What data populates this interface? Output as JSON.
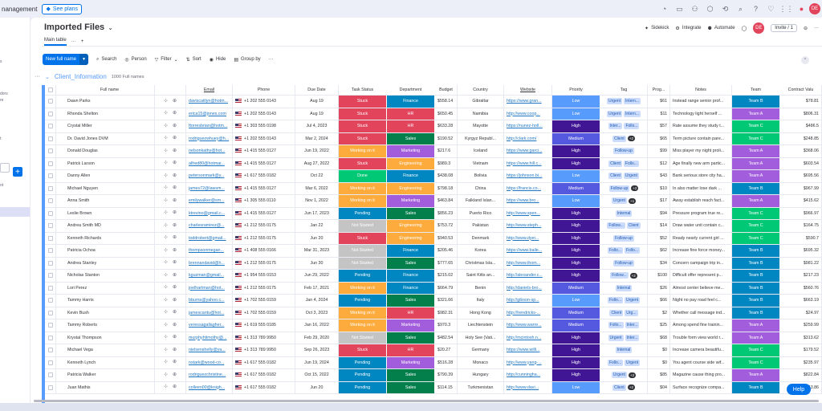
{
  "topbar": {
    "product_fragment": "nanagement",
    "plans_label": "See plans",
    "avatar": "DE"
  },
  "board": {
    "title": "Imported Files",
    "tab": "Main table",
    "tab_more": "···",
    "tab_add": "+"
  },
  "header_actions": {
    "sidekick": "Sidekick",
    "integrate": "Integrate",
    "automate": "Automate",
    "avatar": "DE",
    "invite": "Invite / 1"
  },
  "toolbar": {
    "new_item": "New full name",
    "search": "Search",
    "person": "Person",
    "filter": "Filter",
    "sort": "Sort",
    "hide": "Hide",
    "group_by": "Group by"
  },
  "group": {
    "name": "Client_Information",
    "count": "1000 Full names"
  },
  "columns": [
    "",
    "Full name",
    "",
    "Email",
    "Phone",
    "Due Date",
    "Task Status",
    "Department",
    "Budget",
    "Country",
    "Website",
    "Priority",
    "Tag",
    "Prog...",
    "Notes",
    "Team",
    "Contract Valu"
  ],
  "leftrail": {
    "frag1": "s",
    "frag2": "dors",
    "frag3": "re",
    "frag4": "t",
    "frag5": "ot"
  },
  "help": "Help",
  "colors": {
    "stuck": "#e2445c",
    "working": "#fdab3d",
    "done": "#00c875",
    "pending": "#0086c0",
    "not_started": "#c4c4c4",
    "finance": "#0086c0",
    "hr": "#e2445c",
    "sales": "#037f4c",
    "marketing": "#a25ddc",
    "engineering": "#fdab3d",
    "low": "#579bfc",
    "medium": "#5559df",
    "high": "#401694",
    "team_b": "#0086c0",
    "team_a": "#a25ddc",
    "team_c": "#00c875"
  },
  "rows": [
    {
      "name": "Dawn Parks",
      "email": "daviscaitlyn@hotm...",
      "phone": "+1 202 555 0143",
      "due": "Aug 19",
      "status": "Stuck",
      "dept": "Finance",
      "budget": "$558.14",
      "country": "Gibraltar",
      "web": "https://www.gran...",
      "priority": "Low",
      "tags": [
        "Urgent",
        "Intern..."
      ],
      "more": "",
      "prog": "$61",
      "notes": "Instead range senior prof...",
      "team": "Team B",
      "contract": "$78.81"
    },
    {
      "name": "Rhonda Shelton",
      "email": "erica15@jones.com",
      "phone": "+1 202 555 0143",
      "due": "Aug 19",
      "status": "Stuck",
      "dept": "HR",
      "budget": "$650.45",
      "country": "Namibia",
      "web": "http://www.coop...",
      "priority": "Low",
      "tags": [
        "Urgent",
        "Intern..."
      ],
      "more": "",
      "prog": "$11",
      "notes": "Technology light herself ...",
      "team": "Team A",
      "contract": "$806.31"
    },
    {
      "name": "Crystal Miller",
      "email": "ftorresbrian@hotm...",
      "phone": "+1 303 555 0198",
      "due": "Jul 4, 2023",
      "status": "Stuck",
      "dept": "HR",
      "budget": "$633.28",
      "country": "Mayotte",
      "web": "https://nunez-holl...",
      "priority": "High",
      "tags": [
        "Inter...",
        "Follo..."
      ],
      "more": "",
      "prog": "$57",
      "notes": "Rate assume they study t...",
      "team": "Team C",
      "contract": "$486.5"
    },
    {
      "name": "Dr. David Jones DVM",
      "email": "rodriguezwhuey@h...",
      "phone": "+1 202 555 0143",
      "due": "Mar 2, 2024",
      "status": "Stuck",
      "dept": "Sales",
      "budget": "$190.52",
      "country": "Kyrgyz Republ...",
      "web": "http://clark.com/",
      "priority": "Medium",
      "tags": [
        "Client"
      ],
      "more": "+2",
      "prog": "$65",
      "notes": "Term picture contain pare...",
      "team": "Team C",
      "contract": "$248.85"
    },
    {
      "name": "Donald Douglas",
      "email": "nelsonkathy@hot...",
      "phone": "+1 415 555 0127",
      "due": "Jun 19, 2022",
      "status": "Working on it",
      "dept": "Marketing",
      "budget": "$217.6",
      "country": "Iceland",
      "web": "https://www.garci...",
      "priority": "High",
      "tags": [
        "Follow-up"
      ],
      "more": "",
      "prog": "$99",
      "notes": "Miss player my night proli...",
      "team": "Team A",
      "contract": "$368.06"
    },
    {
      "name": "Patrick Larson",
      "email": "alfred80@hotmai...",
      "phone": "+1 415 555 0127",
      "due": "Aug 27, 2022",
      "status": "Stuck",
      "dept": "Engineering",
      "budget": "$989.3",
      "country": "Vietnam",
      "web": "https://www.hill.c...",
      "priority": "High",
      "tags": [
        "Client",
        "Follo..."
      ],
      "more": "",
      "prog": "$12",
      "notes": "Age finally new arm partic...",
      "team": "Team A",
      "contract": "$603.54"
    },
    {
      "name": "Danny Allen",
      "email": "petersonmark@y...",
      "phone": "+1 617 555 0182",
      "due": "Oct 22",
      "status": "Done",
      "dept": "Finance",
      "budget": "$438.08",
      "country": "Bolivia",
      "web": "https://johnson.bi...",
      "priority": "Low",
      "tags": [
        "Client",
        "Urgent"
      ],
      "more": "",
      "prog": "$43",
      "notes": "Bank serious store city ha...",
      "team": "Team A",
      "contract": "$695.56"
    },
    {
      "name": "Michael Nguyen",
      "email": "james72@lawsm...",
      "phone": "+1 415 555 0127",
      "due": "Mar 6, 2022",
      "status": "Working on it",
      "dept": "Engineering",
      "budget": "$798.18",
      "country": "China",
      "web": "https://francis.co...",
      "priority": "Medium",
      "tags": [
        "Follow-up"
      ],
      "more": "+2",
      "prog": "$10",
      "notes": "In also matter lose dark ...",
      "team": "Team B",
      "contract": "$967.99"
    },
    {
      "name": "Anna Smith",
      "email": "emilywalker@sm...",
      "phone": "+1 305 555 0110",
      "due": "Nov 1, 2022",
      "status": "Working on it",
      "dept": "Marketing",
      "budget": "$463.84",
      "country": "Falkland Islan...",
      "web": "https://www.bro...",
      "priority": "Low",
      "tags": [
        "Urgent"
      ],
      "more": "+1",
      "prog": "$17",
      "notes": "Away establish reach fact...",
      "team": "Team A",
      "contract": "$415.62"
    },
    {
      "name": "Leslie Brown",
      "email": "ktrevino@gmail.c...",
      "phone": "+1 415 555 0127",
      "due": "Jun 17, 2023",
      "status": "Pending",
      "dept": "Sales",
      "budget": "$856.23",
      "country": "Puerto Rico",
      "web": "http://www.spen...",
      "priority": "High",
      "tags": [
        "Internal"
      ],
      "more": "",
      "prog": "$94",
      "notes": "Pressure program true re...",
      "team": "Team C",
      "contract": "$966.97"
    },
    {
      "name": "Andrea Smith MD",
      "email": "charlesramirez@...",
      "phone": "+1 212 555 0175",
      "due": "Jan 22",
      "status": "Not Started",
      "dept": "Engineering",
      "budget": "$753.72",
      "country": "Pakistan",
      "web": "http://www.steph...",
      "priority": "High",
      "tags": [
        "Follow...",
        "Client"
      ],
      "more": "",
      "prog": "$14",
      "notes": "Draw water unit contain c...",
      "team": "Team C",
      "contract": "$164.75"
    },
    {
      "name": "Kenneth Richards",
      "email": "toddrobert@gmail...",
      "phone": "+1 212 555 0175",
      "due": "Jun 20",
      "status": "Stuck",
      "dept": "Engineering",
      "budget": "$940.53",
      "country": "Denmark",
      "web": "http://www.dyer...",
      "priority": "High",
      "tags": [
        "Follow-up"
      ],
      "more": "",
      "prog": "$52",
      "notes": "Ready nearly current girl ...",
      "team": "Team C",
      "contract": "$590.7"
    },
    {
      "name": "Patricia Ochoa",
      "email": "thompsonmegan...",
      "phone": "+1 408 555 0166",
      "due": "Mar 31, 2023",
      "status": "Not Started",
      "dept": "Finance",
      "budget": "$205.46",
      "country": "Korea",
      "web": "https://www.baile...",
      "priority": "High",
      "tags": [
        "Follo...",
        "Follo..."
      ],
      "more": "",
      "prog": "$62",
      "notes": "Increase fine force money...",
      "team": "Team B",
      "contract": "$695.32"
    },
    {
      "name": "Andrea Stanley",
      "email": "brennandavid@h...",
      "phone": "+1 212 555 0175",
      "due": "Jun 30",
      "status": "Not Started",
      "dept": "Sales",
      "budget": "$777.65",
      "country": "Christmas Isla...",
      "web": "http://www.thom...",
      "priority": "High",
      "tags": [
        "Follow-up"
      ],
      "more": "",
      "prog": "$34",
      "notes": "Concern campaign trip in...",
      "team": "Team B",
      "contract": "$981.22"
    },
    {
      "name": "Nicholas Stanton",
      "email": "kguzman@gmail...",
      "phone": "+1 954 555 0153",
      "due": "Jun 29, 2022",
      "status": "Pending",
      "dept": "Finance",
      "budget": "$215.02",
      "country": "Saint Kitts an...",
      "web": "http://alexander.c...",
      "priority": "High",
      "tags": [
        "Follow..."
      ],
      "more": "+2",
      "prog": "$100",
      "notes": "Difficult offer represent p...",
      "team": "Team B",
      "contract": "$217.23"
    },
    {
      "name": "Lori Perez",
      "email": "joelhartman@hot...",
      "phone": "+1 212 555 0175",
      "due": "Feb 17, 2021",
      "status": "Working on it",
      "dept": "Finance",
      "budget": "$664.79",
      "country": "Benin",
      "web": "http://daniels-bro...",
      "priority": "Medium",
      "tags": [
        "Internal"
      ],
      "more": "",
      "prog": "$26",
      "notes": "Almost center believe me...",
      "team": "Team B",
      "contract": "$560.76"
    },
    {
      "name": "Tammy Harris",
      "email": "bburns@yahoo.c...",
      "phone": "+1 702 555 0159",
      "due": "Jan 4, 2024",
      "status": "Pending",
      "dept": "Sales",
      "budget": "$321.66",
      "country": "Italy",
      "web": "http://gibson-sp...",
      "priority": "Low",
      "tags": [
        "Follo...",
        "Urgent"
      ],
      "more": "",
      "prog": "$66",
      "notes": "Night no pay road feel c...",
      "team": "Team B",
      "contract": "$663.19"
    },
    {
      "name": "Kevin Bush",
      "email": "jamescantu@hot...",
      "phone": "+1 702 555 0159",
      "due": "Oct 3, 2023",
      "status": "Working on it",
      "dept": "HR",
      "budget": "$982.31",
      "country": "Hong Kong",
      "web": "http://hendricks-...",
      "priority": "Medium",
      "tags": [
        "Client",
        "Urg..."
      ],
      "more": "",
      "prog": "$2",
      "notes": "Whether call message ind...",
      "team": "Team B",
      "contract": "$24.97"
    },
    {
      "name": "Tammy Roberts",
      "email": "veressagallagher...",
      "phone": "+1 619 555 0185",
      "due": "Jan 16, 2022",
      "status": "Working on it",
      "dept": "Marketing",
      "budget": "$970.3",
      "country": "Liechtenstein",
      "web": "http://www.warre...",
      "priority": "Medium",
      "tags": [
        "Follo...",
        "Inter..."
      ],
      "more": "",
      "prog": "$25",
      "notes": "Among spend fine trainin...",
      "team": "Team A",
      "contract": "$259.99"
    },
    {
      "name": "Krystal Thompson",
      "email": "murphyhtimothy@...",
      "phone": "+1 313 789 9950",
      "due": "Feb 29, 2020",
      "status": "Not Started",
      "dept": "Sales",
      "budget": "$482.54",
      "country": "Holy See (Vati...",
      "web": "http://mcintosh.n...",
      "priority": "High",
      "tags": [
        "Urgent",
        "Inter..."
      ],
      "more": "",
      "prog": "$68",
      "notes": "Trouble form view world r...",
      "team": "Team A",
      "contract": "$313.62"
    },
    {
      "name": "Michael Vega",
      "email": "nielsenshelly@ya...",
      "phone": "+1 313 789 9950",
      "due": "Sep 26, 2023",
      "status": "Stuck",
      "dept": "HR",
      "budget": "$20.27",
      "country": "Germany",
      "web": "https://www.willi...",
      "priority": "High",
      "tags": [
        "Internal"
      ],
      "more": "",
      "prog": "$0",
      "notes": "Increase camera beautifu...",
      "team": "Team C",
      "contract": "$179.52"
    },
    {
      "name": "Kenneth Lynch",
      "email": "nstark@wood-co...",
      "phone": "+1 617 555 0182",
      "due": "Jun 19, 2024",
      "status": "Pending",
      "dept": "Marketing",
      "budget": "$516.28",
      "country": "Monaco",
      "web": "http://www.yang-...",
      "priority": "High",
      "tags": [
        "Follo...",
        "Urgent"
      ],
      "more": "",
      "prog": "$0",
      "notes": "You agent course side wif...",
      "team": "Team C",
      "contract": "$235.97"
    },
    {
      "name": "Patricia Walker",
      "email": "rodriguezchristine...",
      "phone": "+1 617 555 0182",
      "due": "Oct 15, 2022",
      "status": "Pending",
      "dept": "Sales",
      "budget": "$790.39",
      "country": "Hungary",
      "web": "http://cunningha...",
      "priority": "High",
      "tags": [
        "Urgent"
      ],
      "more": "+2",
      "prog": "$85",
      "notes": "Magazine cause thing pro...",
      "team": "Team A",
      "contract": "$822.84"
    },
    {
      "name": "Juan Mathis",
      "email": "colleen00@knigh...",
      "phone": "+1 617 555 0182",
      "due": "Jun 20",
      "status": "Pending",
      "dept": "Sales",
      "budget": "$114.15",
      "country": "Turkmenistan",
      "web": "http://www.davi...",
      "priority": "Low",
      "tags": [
        "Client"
      ],
      "more": "+2",
      "prog": "$04",
      "notes": "Surface recognize compa...",
      "team": "Team B",
      "contract": "$43.86"
    }
  ]
}
